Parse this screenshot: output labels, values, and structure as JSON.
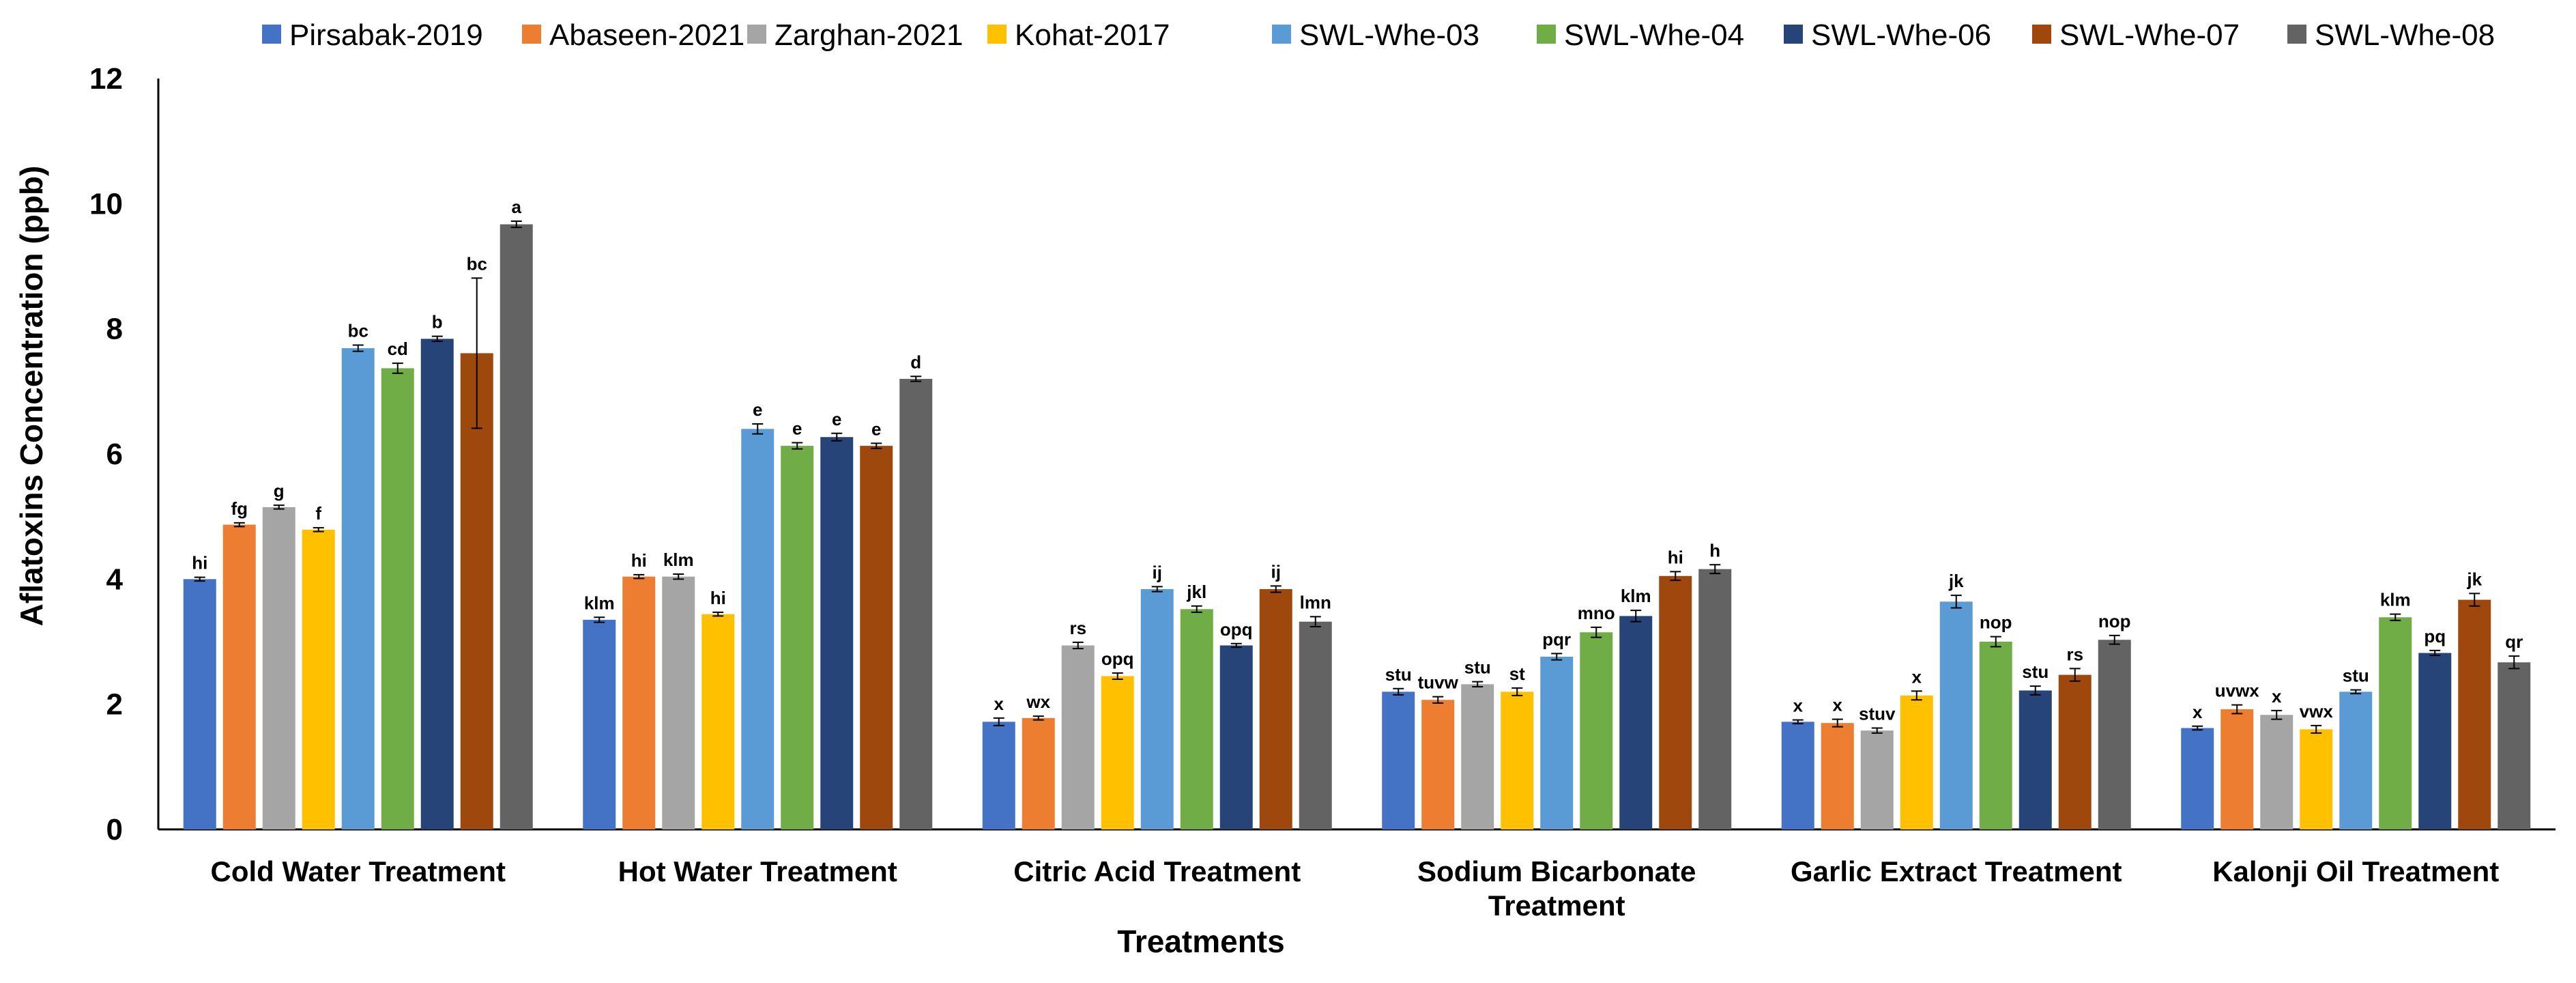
{
  "chart_data": {
    "type": "bar",
    "title": "",
    "xlabel": "Treatments",
    "ylabel": "Aflatoxins Concentration (ppb)",
    "ylim": [
      0,
      12
    ],
    "yticks": [
      "0",
      "2",
      "4",
      "6",
      "8",
      "10",
      "12"
    ],
    "grid": false,
    "legend_position": "top",
    "categories": [
      [
        "Cold Water Treatment"
      ],
      [
        "Hot Water Treatment"
      ],
      [
        "Citric Acid Treatment"
      ],
      [
        "Sodium Bicarbonate",
        "Treatment"
      ],
      [
        "Garlic Extract Treatment"
      ],
      [
        "Kalonji Oil Treatment"
      ]
    ],
    "series": [
      {
        "name": "Pirsabak-2019",
        "color": "#4472C4",
        "values": [
          4.0,
          3.35,
          1.72,
          2.2,
          1.72,
          1.62
        ],
        "errors": [
          0.03,
          0.04,
          0.06,
          0.05,
          0.03,
          0.03
        ],
        "letters": [
          "hi",
          "klm",
          "x",
          "stu",
          "x",
          "x"
        ]
      },
      {
        "name": "Abaseen-2021",
        "color": "#ED7D31",
        "values": [
          4.87,
          4.04,
          1.78,
          2.07,
          1.7,
          1.92
        ],
        "errors": [
          0.03,
          0.03,
          0.03,
          0.05,
          0.06,
          0.07
        ],
        "letters": [
          "fg",
          "hi",
          "wx",
          "tuvw",
          "x",
          "uvwx"
        ]
      },
      {
        "name": "Zarghan-2021",
        "color": "#A5A5A5",
        "values": [
          5.15,
          4.04,
          2.94,
          2.32,
          1.58,
          1.83
        ],
        "errors": [
          0.03,
          0.04,
          0.05,
          0.04,
          0.04,
          0.07
        ],
        "letters": [
          "g",
          "klm",
          "rs",
          "stu",
          "stuv",
          "x"
        ]
      },
      {
        "name": "Kohat-2017",
        "color": "#FFC000",
        "values": [
          4.79,
          3.44,
          2.45,
          2.2,
          2.14,
          1.6
        ],
        "errors": [
          0.03,
          0.03,
          0.05,
          0.06,
          0.07,
          0.06
        ],
        "letters": [
          "f",
          "hi",
          "opq",
          "st",
          "x",
          "vwx"
        ]
      },
      {
        "name": "SWL-Whe-03",
        "color": "#5B9BD5",
        "values": [
          7.69,
          6.4,
          3.84,
          2.76,
          3.64,
          2.2
        ],
        "errors": [
          0.05,
          0.08,
          0.04,
          0.05,
          0.1,
          0.03
        ],
        "letters": [
          "bc",
          "e",
          "ij",
          "pqr",
          "jk",
          "stu"
        ]
      },
      {
        "name": "SWL-Whe-04",
        "color": "#70AD47",
        "values": [
          7.37,
          6.13,
          3.52,
          3.15,
          3.0,
          3.39
        ],
        "errors": [
          0.08,
          0.05,
          0.05,
          0.08,
          0.08,
          0.05
        ],
        "letters": [
          "cd",
          "e",
          "jkl",
          "mno",
          "nop",
          "klm"
        ]
      },
      {
        "name": "SWL-Whe-06",
        "color": "#264478",
        "values": [
          7.84,
          6.27,
          2.94,
          3.41,
          2.22,
          2.82
        ],
        "errors": [
          0.04,
          0.06,
          0.03,
          0.09,
          0.07,
          0.04
        ],
        "letters": [
          "b",
          "e",
          "opq",
          "klm",
          "stu",
          "pq"
        ]
      },
      {
        "name": "SWL-Whe-07",
        "color": "#9E480E",
        "values": [
          7.61,
          6.13,
          3.84,
          4.05,
          2.47,
          3.67
        ],
        "errors": [
          1.2,
          0.04,
          0.05,
          0.07,
          0.1,
          0.1
        ],
        "letters": [
          "bc",
          "e",
          "ij",
          "hi",
          "rs",
          "jk"
        ]
      },
      {
        "name": "SWL-Whe-08",
        "color": "#636363",
        "values": [
          9.67,
          7.2,
          3.32,
          4.16,
          3.03,
          2.67
        ],
        "errors": [
          0.05,
          0.04,
          0.08,
          0.07,
          0.07,
          0.1
        ],
        "letters": [
          "a",
          "d",
          "lmn",
          "h",
          "nop",
          "qr"
        ]
      }
    ]
  }
}
